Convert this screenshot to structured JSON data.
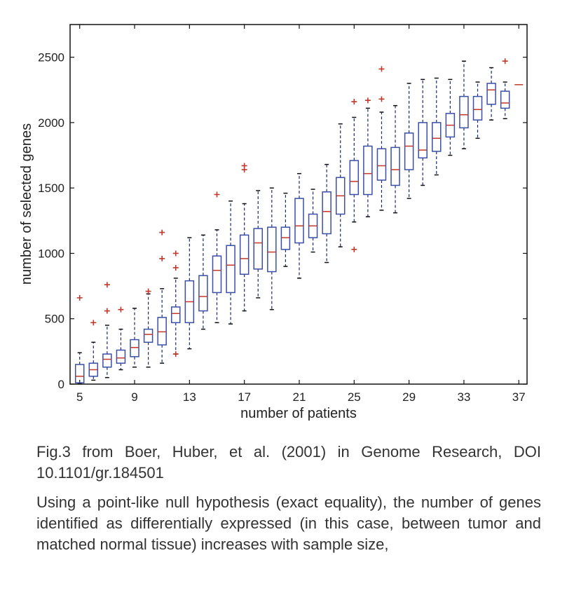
{
  "chart_data": {
    "type": "box",
    "title": "",
    "xlabel": "number of patients",
    "ylabel": "number of selected genes",
    "xlim": [
      4.3,
      37.6
    ],
    "ylim": [
      0,
      2750
    ],
    "xticks": [
      5,
      9,
      13,
      17,
      21,
      25,
      29,
      33,
      37
    ],
    "yticks": [
      0,
      500,
      1000,
      1500,
      2000,
      2500
    ],
    "grid": false,
    "colors": {
      "box": "#3a4fa8",
      "median": "#c0392b",
      "outlier": "#c0392b",
      "whisker": "#1a2a6a"
    },
    "boxes": [
      {
        "x": 5,
        "min": 5,
        "q1": 10,
        "median": 60,
        "q3": 150,
        "max": 240,
        "outliers": [
          660
        ]
      },
      {
        "x": 6,
        "min": 30,
        "q1": 60,
        "median": 110,
        "q3": 160,
        "max": 320,
        "outliers": [
          470
        ]
      },
      {
        "x": 7,
        "min": 50,
        "q1": 130,
        "median": 190,
        "q3": 230,
        "max": 450,
        "outliers": [
          760,
          560
        ]
      },
      {
        "x": 8,
        "min": 110,
        "q1": 160,
        "median": 200,
        "q3": 260,
        "max": 420,
        "outliers": [
          570
        ]
      },
      {
        "x": 9,
        "min": 130,
        "q1": 210,
        "median": 280,
        "q3": 340,
        "max": 580,
        "outliers": []
      },
      {
        "x": 10,
        "min": 130,
        "q1": 320,
        "median": 380,
        "q3": 420,
        "max": 690,
        "outliers": [
          710
        ]
      },
      {
        "x": 11,
        "min": 160,
        "q1": 300,
        "median": 400,
        "q3": 510,
        "max": 730,
        "outliers": [
          1160,
          960
        ]
      },
      {
        "x": 12,
        "min": 230,
        "q1": 470,
        "median": 540,
        "q3": 590,
        "max": 810,
        "outliers": [
          1000,
          890,
          230
        ]
      },
      {
        "x": 13,
        "min": 270,
        "q1": 470,
        "median": 630,
        "q3": 790,
        "max": 1120,
        "outliers": []
      },
      {
        "x": 14,
        "min": 420,
        "q1": 560,
        "median": 670,
        "q3": 830,
        "max": 1140,
        "outliers": []
      },
      {
        "x": 15,
        "min": 470,
        "q1": 700,
        "median": 870,
        "q3": 980,
        "max": 1180,
        "outliers": [
          1450
        ]
      },
      {
        "x": 16,
        "min": 460,
        "q1": 700,
        "median": 910,
        "q3": 1060,
        "max": 1400,
        "outliers": []
      },
      {
        "x": 17,
        "min": 560,
        "q1": 840,
        "median": 960,
        "q3": 1140,
        "max": 1380,
        "outliers": [
          1670,
          1640
        ]
      },
      {
        "x": 18,
        "min": 660,
        "q1": 880,
        "median": 1080,
        "q3": 1190,
        "max": 1480,
        "outliers": []
      },
      {
        "x": 19,
        "min": 570,
        "q1": 860,
        "median": 1010,
        "q3": 1200,
        "max": 1500,
        "outliers": []
      },
      {
        "x": 20,
        "min": 900,
        "q1": 1030,
        "median": 1120,
        "q3": 1200,
        "max": 1460,
        "outliers": []
      },
      {
        "x": 21,
        "min": 810,
        "q1": 1080,
        "median": 1210,
        "q3": 1420,
        "max": 1610,
        "outliers": []
      },
      {
        "x": 22,
        "min": 1010,
        "q1": 1120,
        "median": 1210,
        "q3": 1300,
        "max": 1490,
        "outliers": []
      },
      {
        "x": 23,
        "min": 930,
        "q1": 1150,
        "median": 1320,
        "q3": 1470,
        "max": 1680,
        "outliers": []
      },
      {
        "x": 24,
        "min": 1050,
        "q1": 1300,
        "median": 1440,
        "q3": 1580,
        "max": 1990,
        "outliers": []
      },
      {
        "x": 25,
        "min": 1240,
        "q1": 1450,
        "median": 1550,
        "q3": 1710,
        "max": 2040,
        "outliers": [
          2160,
          1030
        ]
      },
      {
        "x": 26,
        "min": 1280,
        "q1": 1450,
        "median": 1610,
        "q3": 1820,
        "max": 2110,
        "outliers": [
          2170
        ]
      },
      {
        "x": 27,
        "min": 1330,
        "q1": 1560,
        "median": 1670,
        "q3": 1800,
        "max": 2080,
        "outliers": [
          2410,
          2180
        ]
      },
      {
        "x": 28,
        "min": 1310,
        "q1": 1520,
        "median": 1640,
        "q3": 1810,
        "max": 2130,
        "outliers": []
      },
      {
        "x": 29,
        "min": 1420,
        "q1": 1640,
        "median": 1820,
        "q3": 1920,
        "max": 2300,
        "outliers": []
      },
      {
        "x": 30,
        "min": 1520,
        "q1": 1730,
        "median": 1790,
        "q3": 2000,
        "max": 2330,
        "outliers": []
      },
      {
        "x": 31,
        "min": 1600,
        "q1": 1780,
        "median": 1880,
        "q3": 2000,
        "max": 2340,
        "outliers": []
      },
      {
        "x": 32,
        "min": 1750,
        "q1": 1890,
        "median": 1980,
        "q3": 2070,
        "max": 2330,
        "outliers": []
      },
      {
        "x": 33,
        "min": 1800,
        "q1": 1960,
        "median": 2060,
        "q3": 2200,
        "max": 2470,
        "outliers": []
      },
      {
        "x": 34,
        "min": 1880,
        "q1": 2020,
        "median": 2100,
        "q3": 2200,
        "max": 2310,
        "outliers": []
      },
      {
        "x": 35,
        "min": 2020,
        "q1": 2140,
        "median": 2250,
        "q3": 2300,
        "max": 2420,
        "outliers": []
      },
      {
        "x": 36,
        "min": 2030,
        "q1": 2110,
        "median": 2150,
        "q3": 2240,
        "max": 2310,
        "outliers": [
          2470
        ]
      },
      {
        "x": 37,
        "min": 2290,
        "q1": 2290,
        "median": 2290,
        "q3": 2290,
        "max": 2290,
        "outliers": []
      }
    ]
  },
  "caption": {
    "source": "Fig.3 from Boer, Huber, et al. (2001) in Genome Research, DOI 10.1101/gr.184501",
    "text": "Using a point-like null hypothesis (exact equality),  the number of genes identified as differentially expressed (in this case, between tumor and matched normal tissue) increases with sample size,"
  }
}
